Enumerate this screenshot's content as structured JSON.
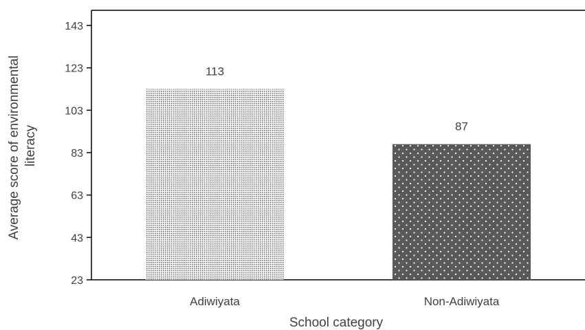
{
  "chart_data": {
    "type": "bar",
    "title": "",
    "xlabel": "School category",
    "ylabel_lines": [
      "Average score of environmental",
      "literacy"
    ],
    "categories": [
      "Adiwiyata",
      "Non-Adiwiyata"
    ],
    "values": [
      113,
      87
    ],
    "data_labels": [
      "113",
      "87"
    ],
    "ylim": [
      23,
      143
    ],
    "yticks": [
      23,
      43,
      63,
      83,
      103,
      123,
      143
    ],
    "grid": false,
    "legend": "none",
    "bar_fills": [
      "#c4c4c4",
      "#595959"
    ],
    "axis_color": "#000000",
    "text_color": "#404040"
  }
}
